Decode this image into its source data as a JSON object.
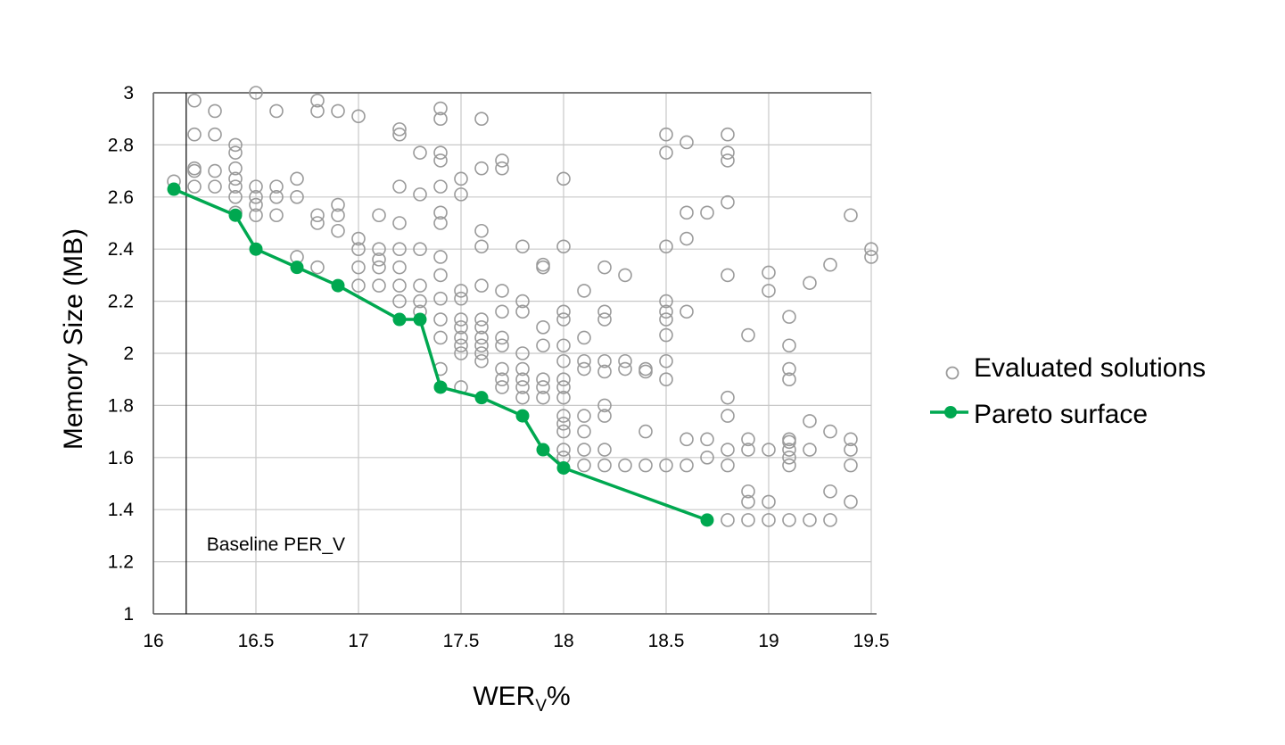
{
  "chart_data": {
    "type": "scatter",
    "xlabel_main": "WER",
    "xlabel_sub": "V",
    "xlabel_suffix": "%",
    "ylabel": "Memory Size (MB)",
    "xlim": [
      16,
      19.5
    ],
    "ylim": [
      1,
      3
    ],
    "x_ticks": [
      "16",
      "16.5",
      "17",
      "17.5",
      "18",
      "18.5",
      "19",
      "19.5"
    ],
    "y_ticks": [
      "1",
      "1.2",
      "1.4",
      "1.6",
      "1.8",
      "2",
      "2.2",
      "2.4",
      "2.6",
      "2.8",
      "3"
    ],
    "grid": true,
    "legend_position": "right",
    "baseline": {
      "x": 16.16,
      "label": "Baseline PER_V"
    },
    "series": [
      {
        "name": "Evaluated solutions",
        "style": "hollow-circle",
        "color": "#9a9a9a",
        "points": [
          [
            16.1,
            2.66
          ],
          [
            16.2,
            2.97
          ],
          [
            16.2,
            2.84
          ],
          [
            16.2,
            2.71
          ],
          [
            16.2,
            2.7
          ],
          [
            16.2,
            2.64
          ],
          [
            16.3,
            2.93
          ],
          [
            16.3,
            2.84
          ],
          [
            16.3,
            2.7
          ],
          [
            16.3,
            2.64
          ],
          [
            16.4,
            2.8
          ],
          [
            16.4,
            2.77
          ],
          [
            16.4,
            2.71
          ],
          [
            16.4,
            2.67
          ],
          [
            16.4,
            2.64
          ],
          [
            16.4,
            2.6
          ],
          [
            16.4,
            2.54
          ],
          [
            16.5,
            3.0
          ],
          [
            16.5,
            2.64
          ],
          [
            16.5,
            2.6
          ],
          [
            16.5,
            2.57
          ],
          [
            16.5,
            2.53
          ],
          [
            16.6,
            2.93
          ],
          [
            16.6,
            2.64
          ],
          [
            16.6,
            2.6
          ],
          [
            16.6,
            2.53
          ],
          [
            16.7,
            2.67
          ],
          [
            16.7,
            2.6
          ],
          [
            16.7,
            2.37
          ],
          [
            16.8,
            2.97
          ],
          [
            16.8,
            2.93
          ],
          [
            16.8,
            2.53
          ],
          [
            16.8,
            2.5
          ],
          [
            16.8,
            2.33
          ],
          [
            16.9,
            2.93
          ],
          [
            16.9,
            2.57
          ],
          [
            16.9,
            2.53
          ],
          [
            16.9,
            2.47
          ],
          [
            17.0,
            2.91
          ],
          [
            17.0,
            2.44
          ],
          [
            17.0,
            2.4
          ],
          [
            17.0,
            2.33
          ],
          [
            17.0,
            2.26
          ],
          [
            17.1,
            2.53
          ],
          [
            17.1,
            2.4
          ],
          [
            17.1,
            2.36
          ],
          [
            17.1,
            2.33
          ],
          [
            17.1,
            2.26
          ],
          [
            17.2,
            2.86
          ],
          [
            17.2,
            2.84
          ],
          [
            17.2,
            2.64
          ],
          [
            17.2,
            2.5
          ],
          [
            17.2,
            2.4
          ],
          [
            17.2,
            2.33
          ],
          [
            17.2,
            2.26
          ],
          [
            17.2,
            2.2
          ],
          [
            17.3,
            2.77
          ],
          [
            17.3,
            2.61
          ],
          [
            17.3,
            2.4
          ],
          [
            17.3,
            2.26
          ],
          [
            17.3,
            2.2
          ],
          [
            17.3,
            2.16
          ],
          [
            17.4,
            2.94
          ],
          [
            17.4,
            2.9
          ],
          [
            17.4,
            2.77
          ],
          [
            17.4,
            2.74
          ],
          [
            17.4,
            2.64
          ],
          [
            17.4,
            2.54
          ],
          [
            17.4,
            2.5
          ],
          [
            17.4,
            2.37
          ],
          [
            17.4,
            2.3
          ],
          [
            17.4,
            2.21
          ],
          [
            17.4,
            2.13
          ],
          [
            17.4,
            2.06
          ],
          [
            17.4,
            1.94
          ],
          [
            17.5,
            2.67
          ],
          [
            17.5,
            2.61
          ],
          [
            17.5,
            2.24
          ],
          [
            17.5,
            2.21
          ],
          [
            17.5,
            2.13
          ],
          [
            17.5,
            2.1
          ],
          [
            17.5,
            2.06
          ],
          [
            17.5,
            2.03
          ],
          [
            17.5,
            2.0
          ],
          [
            17.5,
            1.87
          ],
          [
            17.6,
            2.9
          ],
          [
            17.6,
            2.71
          ],
          [
            17.6,
            2.47
          ],
          [
            17.6,
            2.41
          ],
          [
            17.6,
            2.26
          ],
          [
            17.6,
            2.13
          ],
          [
            17.6,
            2.1
          ],
          [
            17.6,
            2.06
          ],
          [
            17.6,
            2.03
          ],
          [
            17.6,
            2.0
          ],
          [
            17.6,
            1.97
          ],
          [
            17.7,
            2.74
          ],
          [
            17.7,
            2.71
          ],
          [
            17.7,
            2.24
          ],
          [
            17.7,
            2.16
          ],
          [
            17.7,
            2.06
          ],
          [
            17.7,
            2.03
          ],
          [
            17.7,
            1.94
          ],
          [
            17.7,
            1.9
          ],
          [
            17.7,
            1.87
          ],
          [
            17.8,
            2.41
          ],
          [
            17.8,
            2.2
          ],
          [
            17.8,
            2.16
          ],
          [
            17.8,
            2.0
          ],
          [
            17.8,
            1.94
          ],
          [
            17.8,
            1.9
          ],
          [
            17.8,
            1.87
          ],
          [
            17.8,
            1.83
          ],
          [
            17.9,
            2.34
          ],
          [
            17.9,
            2.33
          ],
          [
            17.9,
            2.1
          ],
          [
            17.9,
            2.03
          ],
          [
            17.9,
            1.9
          ],
          [
            17.9,
            1.87
          ],
          [
            17.9,
            1.83
          ],
          [
            18.0,
            2.67
          ],
          [
            18.0,
            2.41
          ],
          [
            18.0,
            2.16
          ],
          [
            18.0,
            2.13
          ],
          [
            18.0,
            2.03
          ],
          [
            18.0,
            1.97
          ],
          [
            18.0,
            1.9
          ],
          [
            18.0,
            1.87
          ],
          [
            18.0,
            1.83
          ],
          [
            18.0,
            1.76
          ],
          [
            18.0,
            1.73
          ],
          [
            18.0,
            1.7
          ],
          [
            18.0,
            1.63
          ],
          [
            18.0,
            1.6
          ],
          [
            18.1,
            2.24
          ],
          [
            18.1,
            2.06
          ],
          [
            18.1,
            1.97
          ],
          [
            18.1,
            1.94
          ],
          [
            18.1,
            1.76
          ],
          [
            18.1,
            1.7
          ],
          [
            18.1,
            1.63
          ],
          [
            18.1,
            1.57
          ],
          [
            18.2,
            2.33
          ],
          [
            18.2,
            2.16
          ],
          [
            18.2,
            2.13
          ],
          [
            18.2,
            1.97
          ],
          [
            18.2,
            1.93
          ],
          [
            18.2,
            1.8
          ],
          [
            18.2,
            1.76
          ],
          [
            18.2,
            1.63
          ],
          [
            18.2,
            1.57
          ],
          [
            18.3,
            2.3
          ],
          [
            18.3,
            1.97
          ],
          [
            18.3,
            1.94
          ],
          [
            18.3,
            1.57
          ],
          [
            18.4,
            1.94
          ],
          [
            18.4,
            1.93
          ],
          [
            18.4,
            1.7
          ],
          [
            18.4,
            1.57
          ],
          [
            18.5,
            2.84
          ],
          [
            18.5,
            2.77
          ],
          [
            18.5,
            2.41
          ],
          [
            18.5,
            2.2
          ],
          [
            18.5,
            2.16
          ],
          [
            18.5,
            2.13
          ],
          [
            18.5,
            2.07
          ],
          [
            18.5,
            1.97
          ],
          [
            18.5,
            1.9
          ],
          [
            18.5,
            1.57
          ],
          [
            18.6,
            2.81
          ],
          [
            18.6,
            2.54
          ],
          [
            18.6,
            2.44
          ],
          [
            18.6,
            2.16
          ],
          [
            18.6,
            1.67
          ],
          [
            18.6,
            1.57
          ],
          [
            18.7,
            2.54
          ],
          [
            18.7,
            1.67
          ],
          [
            18.7,
            1.6
          ],
          [
            18.8,
            2.84
          ],
          [
            18.8,
            2.77
          ],
          [
            18.8,
            2.74
          ],
          [
            18.8,
            2.58
          ],
          [
            18.8,
            2.3
          ],
          [
            18.8,
            1.83
          ],
          [
            18.8,
            1.76
          ],
          [
            18.8,
            1.63
          ],
          [
            18.8,
            1.57
          ],
          [
            18.8,
            1.36
          ],
          [
            18.9,
            2.07
          ],
          [
            18.9,
            1.67
          ],
          [
            18.9,
            1.63
          ],
          [
            18.9,
            1.47
          ],
          [
            18.9,
            1.43
          ],
          [
            18.9,
            1.36
          ],
          [
            19.0,
            2.31
          ],
          [
            19.0,
            2.24
          ],
          [
            19.0,
            1.63
          ],
          [
            19.0,
            1.43
          ],
          [
            19.0,
            1.36
          ],
          [
            19.1,
            2.14
          ],
          [
            19.1,
            2.03
          ],
          [
            19.1,
            1.94
          ],
          [
            19.1,
            1.9
          ],
          [
            19.1,
            1.67
          ],
          [
            19.1,
            1.66
          ],
          [
            19.1,
            1.63
          ],
          [
            19.1,
            1.6
          ],
          [
            19.1,
            1.57
          ],
          [
            19.1,
            1.36
          ],
          [
            19.2,
            2.27
          ],
          [
            19.2,
            1.74
          ],
          [
            19.2,
            1.63
          ],
          [
            19.2,
            1.36
          ],
          [
            19.3,
            2.34
          ],
          [
            19.3,
            1.7
          ],
          [
            19.3,
            1.47
          ],
          [
            19.3,
            1.36
          ],
          [
            19.4,
            2.53
          ],
          [
            19.4,
            1.67
          ],
          [
            19.4,
            1.63
          ],
          [
            19.4,
            1.57
          ],
          [
            19.4,
            1.43
          ],
          [
            19.5,
            2.4
          ],
          [
            19.5,
            2.37
          ]
        ]
      },
      {
        "name": "Pareto surface",
        "style": "line-marker",
        "color": "#00a850",
        "points": [
          [
            16.1,
            2.63
          ],
          [
            16.4,
            2.53
          ],
          [
            16.5,
            2.4
          ],
          [
            16.7,
            2.33
          ],
          [
            16.9,
            2.26
          ],
          [
            17.2,
            2.13
          ],
          [
            17.3,
            2.13
          ],
          [
            17.4,
            1.87
          ],
          [
            17.6,
            1.83
          ],
          [
            17.8,
            1.76
          ],
          [
            17.9,
            1.63
          ],
          [
            18.0,
            1.56
          ],
          [
            18.7,
            1.36
          ]
        ]
      }
    ],
    "legend": {
      "scatter_label": "Evaluated solutions",
      "line_label": "Pareto surface"
    }
  }
}
